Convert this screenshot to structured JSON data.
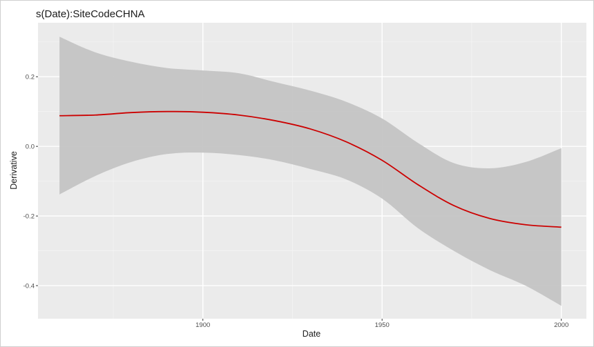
{
  "chart_data": {
    "type": "line",
    "title": "s(Date):SiteCodeCHNA",
    "xlabel": "Date",
    "ylabel": "Derivative",
    "xlim": [
      1854,
      2007
    ],
    "ylim": [
      -0.495,
      0.355
    ],
    "x_ticks": [
      1900,
      1950,
      2000
    ],
    "x_tick_labels": [
      "1900",
      "1950",
      "2000"
    ],
    "y_ticks": [
      0.2,
      0.0,
      -0.2,
      -0.4
    ],
    "y_tick_labels": [
      "0.2",
      "0.0",
      "-0.2",
      "-0.4"
    ],
    "grid": true,
    "legend": "none",
    "series": [
      {
        "x": [
          1860,
          1870,
          1880,
          1890,
          1900,
          1910,
          1920,
          1930,
          1940,
          1950,
          1960,
          1970,
          1980,
          1990,
          2000
        ],
        "y": [
          0.088,
          0.09,
          0.097,
          0.1,
          0.098,
          0.09,
          0.074,
          0.05,
          0.013,
          -0.04,
          -0.11,
          -0.17,
          -0.207,
          -0.225,
          -0.232
        ],
        "upper": [
          0.315,
          0.27,
          0.243,
          0.225,
          0.218,
          0.21,
          0.185,
          0.16,
          0.128,
          0.08,
          0.01,
          -0.048,
          -0.063,
          -0.045,
          -0.005
        ],
        "lower": [
          -0.138,
          -0.085,
          -0.045,
          -0.022,
          -0.018,
          -0.025,
          -0.04,
          -0.065,
          -0.095,
          -0.15,
          -0.235,
          -0.3,
          -0.355,
          -0.4,
          -0.458
        ]
      }
    ],
    "colors": {
      "line": "#cc0000",
      "band": "#c4c4c4",
      "panel": "#ebebeb",
      "grid_major": "#ffffff",
      "grid_minor": "#f4f4f4"
    }
  }
}
